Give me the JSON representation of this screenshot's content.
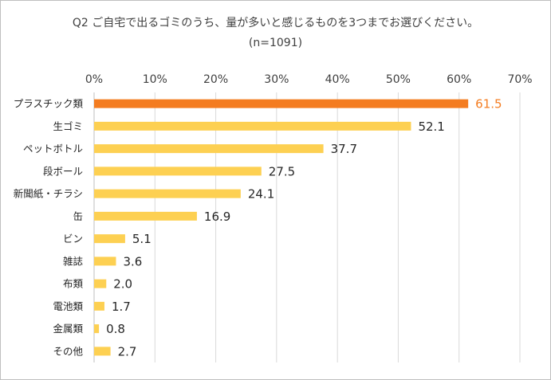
{
  "chart_data": {
    "type": "bar",
    "orientation": "horizontal",
    "title": "Q2 ご自宅で出るゴミのうち、量が多いと感じるものを3つまでお選びください。",
    "subtitle": "(n=1091)",
    "categories": [
      "プラスチック類",
      "生ゴミ",
      "ペットボトル",
      "段ボール",
      "新聞紙・チラシ",
      "缶",
      "ビン",
      "雑誌",
      "布類",
      "電池類",
      "金属類",
      "その他"
    ],
    "values": [
      61.5,
      52.1,
      37.7,
      27.5,
      24.1,
      16.9,
      5.1,
      3.6,
      2.0,
      1.7,
      0.8,
      2.7
    ],
    "value_labels": [
      "61.5",
      "52.1",
      "37.7",
      "27.5",
      "24.1",
      "16.9",
      "5.1",
      "3.6",
      "2.0",
      "1.7",
      "0.8",
      "2.7"
    ],
    "x_ticks": [
      "0%",
      "10%",
      "20%",
      "30%",
      "40%",
      "50%",
      "60%",
      "70%"
    ],
    "xlim": [
      0,
      70
    ],
    "x_axis_position": "top",
    "grid": true,
    "legend": "none",
    "colors": {
      "highlight_bar": "#f47c20",
      "highlight_label": "#f47c20",
      "bar": "#fdd052",
      "label": "#262626",
      "grid": "#d9d9d9",
      "axis": "#bfbfbf"
    },
    "highlight_index": 0
  }
}
